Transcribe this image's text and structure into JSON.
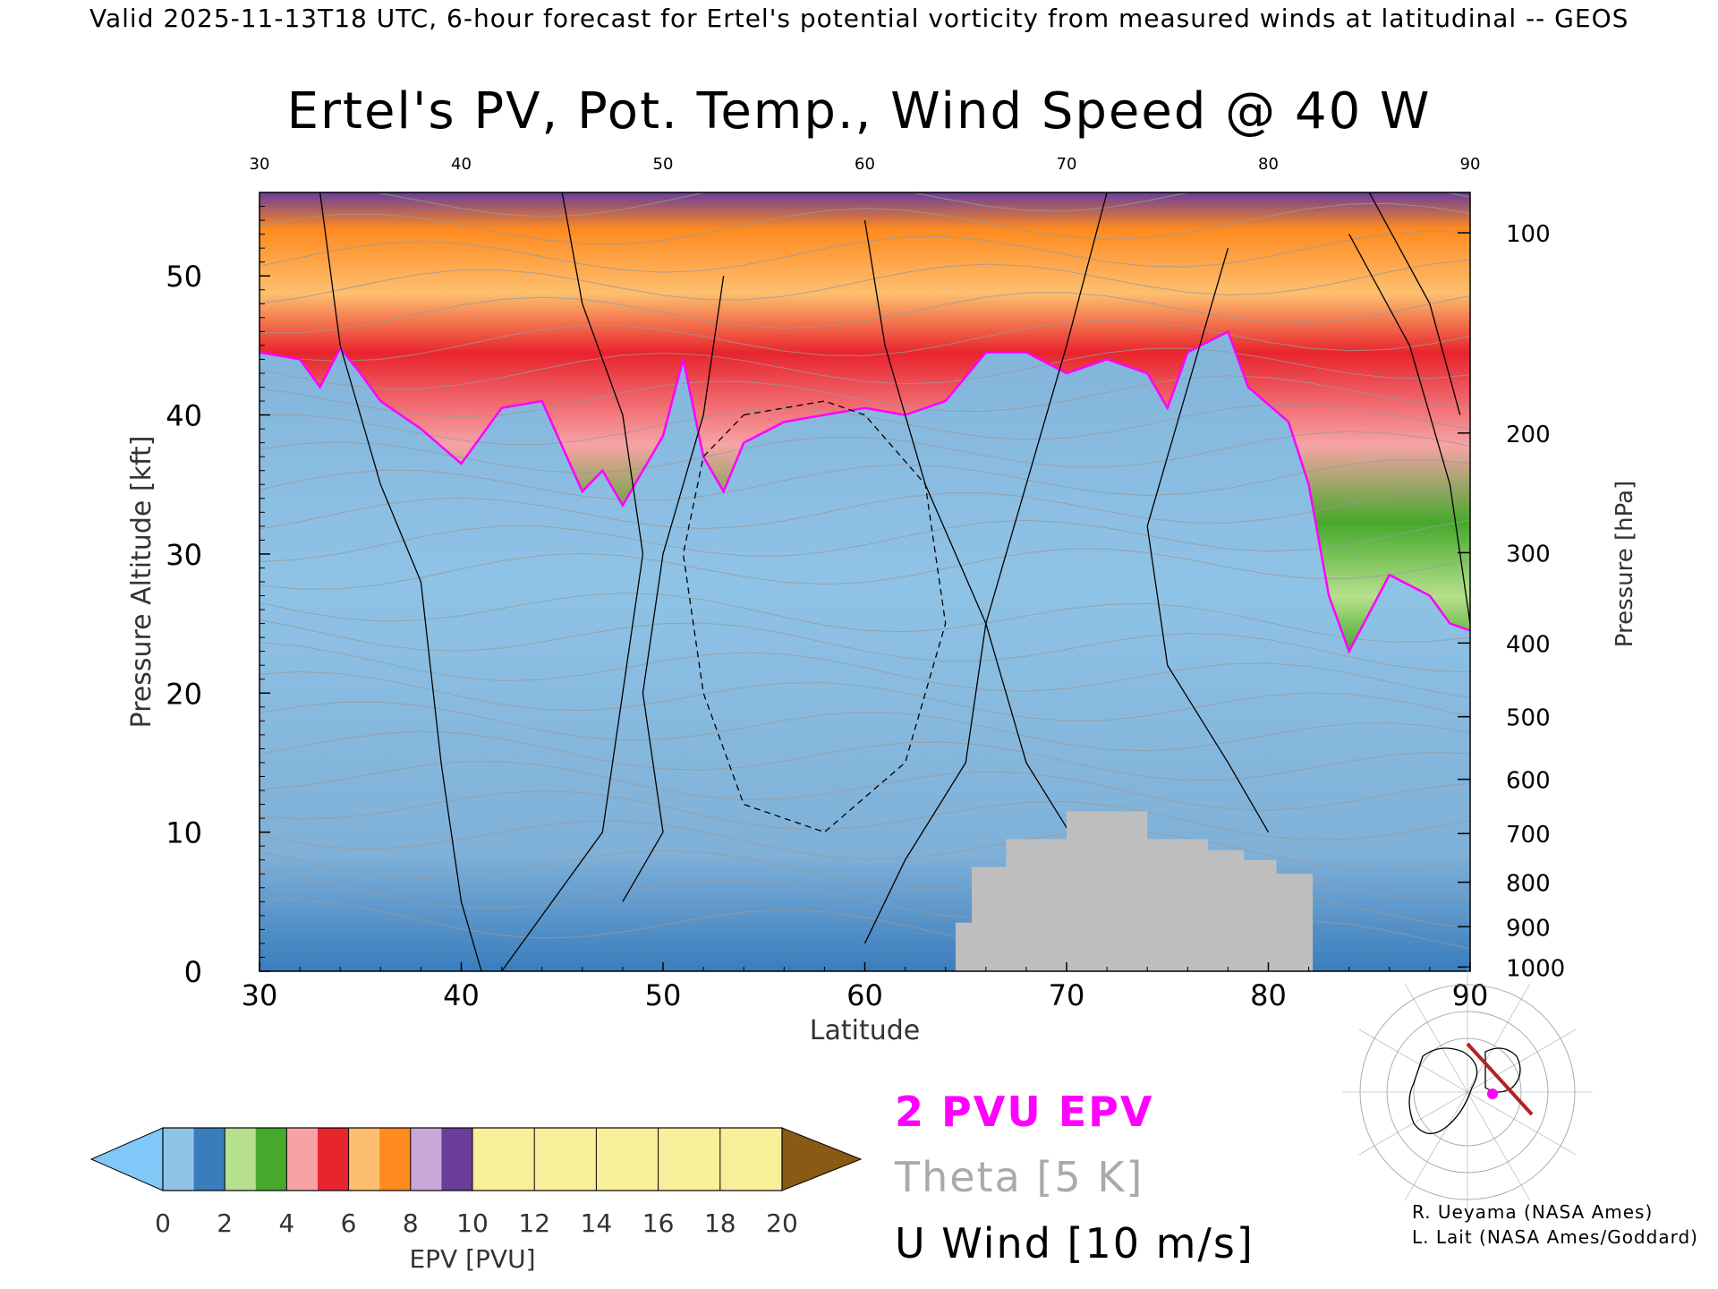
{
  "header": "Valid 2025-11-13T18 UTC, 6-hour forecast for Ertel's potential vorticity from measured winds at latitudinal -- GEOS",
  "chart_data": {
    "type": "heatmap",
    "title": "Ertel's PV, Pot. Temp., Wind Speed @ 40 W",
    "xlabel": "Latitude",
    "ylabel_left": "Pressure Altitude [kft]",
    "ylabel_right": "Pressure [hPa]",
    "xlim": [
      30,
      90
    ],
    "ylim": [
      0,
      56
    ],
    "x_ticks": [
      "30",
      "40",
      "50",
      "60",
      "70",
      "80",
      "90"
    ],
    "y_ticks": [
      "0",
      "10",
      "20",
      "30",
      "40",
      "50"
    ],
    "pressure_ticks": [
      {
        "label": "100",
        "kft": 53.1
      },
      {
        "label": "200",
        "kft": 38.7
      },
      {
        "label": "300",
        "kft": 30.1
      },
      {
        "label": "400",
        "kft": 23.6
      },
      {
        "label": "500",
        "kft": 18.3
      },
      {
        "label": "600",
        "kft": 13.8
      },
      {
        "label": "700",
        "kft": 9.9
      },
      {
        "label": "800",
        "kft": 6.4
      },
      {
        "label": "900",
        "kft": 3.2
      },
      {
        "label": "1000",
        "kft": 0.3
      }
    ],
    "tropopause_2pvu_kft": [
      [
        30,
        44.5
      ],
      [
        32,
        44
      ],
      [
        33,
        42
      ],
      [
        34,
        44.8
      ],
      [
        35,
        43
      ],
      [
        36,
        41
      ],
      [
        38,
        39
      ],
      [
        40,
        36.5
      ],
      [
        42,
        40.5
      ],
      [
        44,
        41
      ],
      [
        46,
        34.5
      ],
      [
        47,
        36
      ],
      [
        48,
        33.5
      ],
      [
        49,
        36
      ],
      [
        50,
        38.5
      ],
      [
        51,
        44
      ],
      [
        52,
        37
      ],
      [
        53,
        34.5
      ],
      [
        54,
        38
      ],
      [
        56,
        39.5
      ],
      [
        58,
        40
      ],
      [
        60,
        40.5
      ],
      [
        62,
        40
      ],
      [
        64,
        41
      ],
      [
        66,
        44.5
      ],
      [
        68,
        44.5
      ],
      [
        70,
        43
      ],
      [
        72,
        44
      ],
      [
        74,
        43
      ],
      [
        75,
        40.5
      ],
      [
        76,
        44.5
      ],
      [
        78,
        46
      ],
      [
        79,
        42
      ],
      [
        81,
        39.5
      ],
      [
        82,
        35
      ],
      [
        83,
        27
      ],
      [
        84,
        23
      ],
      [
        86,
        28.5
      ],
      [
        88,
        27
      ],
      [
        89,
        25
      ],
      [
        90,
        24.5
      ]
    ],
    "colorbar": {
      "label": "EPV [PVU]",
      "ticks": [
        "0",
        "2",
        "4",
        "6",
        "8",
        "10",
        "12",
        "14",
        "16",
        "18",
        "20"
      ],
      "colors": [
        "#8fc3e6",
        "#3a7dbd",
        "#b6e08d",
        "#46a82c",
        "#f7a3a6",
        "#e8242c",
        "#fdbf6f",
        "#ff8a1f",
        "#c8a8d8",
        "#6a3d9a",
        "#f7ef99",
        "#8a5a14"
      ],
      "under_color": "#7fc8f8",
      "over_color": "#8a5a14"
    },
    "terrain_color": "#bebebe",
    "legend": [
      "2 PVU EPV",
      "Theta [5 K]",
      "U Wind [10 m/s]"
    ],
    "legend_colors": [
      "#ff00ff",
      "#aaaaaa",
      "#000000"
    ]
  },
  "inset": {
    "track_color": "#b22222",
    "marker_color": "#ff00ff"
  },
  "credits": [
    "R. Ueyama (NASA Ames)",
    "L. Lait (NASA Ames/Goddard)"
  ]
}
